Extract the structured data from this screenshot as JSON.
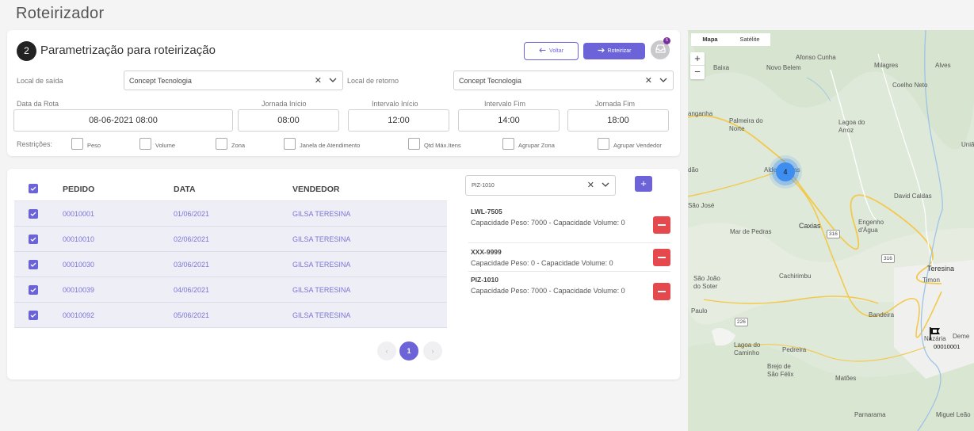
{
  "page": {
    "title": "Roteirizador"
  },
  "params": {
    "step": "2",
    "title": "Parametrização para roteirização",
    "back_label": "Voltar",
    "route_label": "Roteirizar",
    "inbox_badge": "5",
    "departure_label": "Local de saída",
    "departure_value": "Concept Tecnologia",
    "return_label": "Local de retorno",
    "return_value": "Concept Tecnologia",
    "route_date_label": "Data da Rota",
    "route_date_value": "08-06-2021 08:00",
    "shift_start_label": "Jornada Início",
    "shift_start_value": "08:00",
    "break_start_label": "Intervalo Início",
    "break_start_value": "12:00",
    "break_end_label": "Intervalo Fim",
    "break_end_value": "14:00",
    "shift_end_label": "Jornada Fim",
    "shift_end_value": "18:00",
    "restrictions_label": "Restrições:",
    "restrictions": [
      "Peso",
      "Volume",
      "Zona",
      "Janela de Atendimento",
      "Qtd Máx.Itens",
      "Agrupar Zona",
      "Agrupar Vendedor"
    ]
  },
  "orders": {
    "headers": {
      "order": "PEDIDO",
      "date": "DATA",
      "seller": "VENDEDOR"
    },
    "rows": [
      {
        "order": "00010001",
        "date": "01/06/2021",
        "seller": "GILSA TERESINA"
      },
      {
        "order": "00010010",
        "date": "02/06/2021",
        "seller": "GILSA TERESINA"
      },
      {
        "order": "00010030",
        "date": "03/06/2021",
        "seller": "GILSA TERESINA"
      },
      {
        "order": "00010039",
        "date": "04/06/2021",
        "seller": "GILSA TERESINA"
      },
      {
        "order": "00010092",
        "date": "05/06/2021",
        "seller": "GILSA TERESINA"
      }
    ],
    "pager": {
      "prev": "‹",
      "current": "1",
      "next": "›"
    }
  },
  "vehicles": {
    "select_value": "PIZ-1010",
    "add_label": "+",
    "items": [
      {
        "plate": "LWL-7505",
        "info": "Capacidade Peso: 7000 - Capacidade Volume: 0"
      },
      {
        "plate": "XXX-9999",
        "info": "Capacidade Peso: 0 - Capacidade Volume: 0"
      },
      {
        "plate": "PIZ-1010",
        "info": "Capacidade Peso: 7000 - Capacidade Volume: 0"
      }
    ]
  },
  "map": {
    "tab_map": "Mapa",
    "tab_satellite": "Satélite",
    "zoom_in": "+",
    "zoom_out": "−",
    "cluster_count": "4",
    "marker_label": "00010001",
    "places": {
      "afonso_cunha": "Afonso Cunha",
      "baixa": "Baixa",
      "novo_belem": "Novo Belem",
      "milagres": "Milagres",
      "alves": "Alves",
      "coelho_neto": "Coelho Neto",
      "anganha": "anganha",
      "palmeira_norte": "Palmeira do Norte",
      "lagoa_arroz": "Lagoa do Arroz",
      "uniao": "União",
      "dao": "dão",
      "aldeias_altas": "Aldeias Altas",
      "david_caldas": "David Caldas",
      "sao_jose": "São José",
      "engenho_agua": "Engenho d'Água",
      "mar_pedras": "Mar de Pedras",
      "caxias": "Caxias",
      "teresina": "Teresina",
      "timon": "Timon",
      "sao_joao_soter": "São João do Soter",
      "cachirimbu": "Cachirimbu",
      "paulo": "Paulo",
      "bandeira": "Bandeira",
      "lagoa_caminho": "Lagoa do Caminho",
      "pedreira": "Pedreira",
      "brejo_sao_felix": "Brejo de São Félix",
      "matoes": "Matões",
      "parnarama": "Parnarama",
      "miguel_leao": "Miguel Leão",
      "nazaria": "Nazária",
      "demerval": "Deme"
    },
    "shields": [
      "316",
      "316",
      "226"
    ]
  }
}
